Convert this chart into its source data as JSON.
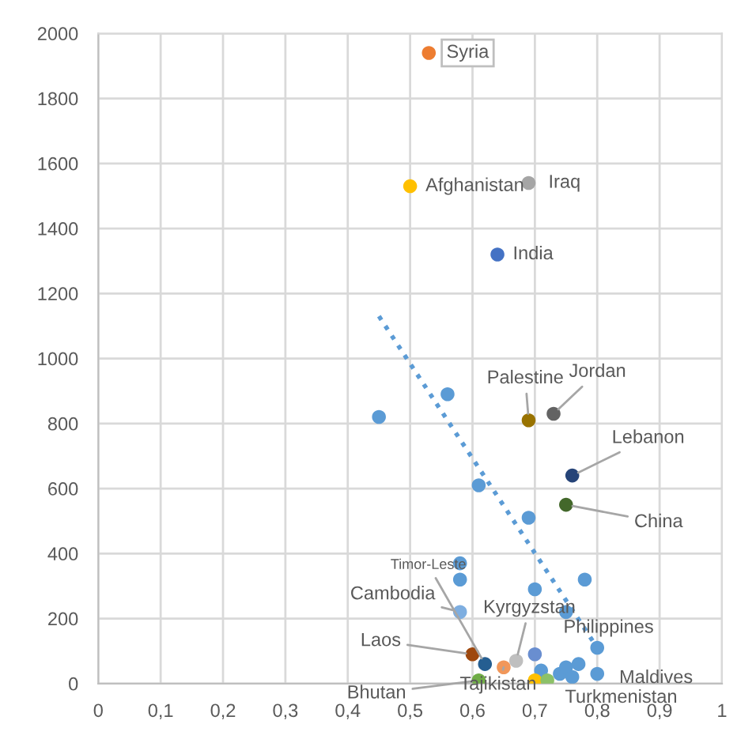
{
  "chart_data": {
    "type": "scatter",
    "xlim": [
      0,
      1
    ],
    "ylim": [
      0,
      2000
    ],
    "xticks": [
      {
        "value": 0,
        "label": "0"
      },
      {
        "value": 0.1,
        "label": "0,1"
      },
      {
        "value": 0.2,
        "label": "0,2"
      },
      {
        "value": 0.3,
        "label": "0,3"
      },
      {
        "value": 0.4,
        "label": "0,4"
      },
      {
        "value": 0.5,
        "label": "0,5"
      },
      {
        "value": 0.6,
        "label": "0,6"
      },
      {
        "value": 0.7,
        "label": "0,7"
      },
      {
        "value": 0.8,
        "label": "0,8"
      },
      {
        "value": 0.9,
        "label": "0,9"
      },
      {
        "value": 1,
        "label": "1"
      }
    ],
    "yticks": [
      0,
      200,
      400,
      600,
      800,
      1000,
      1200,
      1400,
      1600,
      1800,
      2000
    ],
    "grid": true,
    "series": [
      {
        "marker": "circle",
        "x": [
          0.53,
          0.5,
          0.69,
          0.64,
          0.69,
          0.73,
          0.76,
          0.75,
          0.45,
          0.56,
          0.61,
          0.69,
          0.58,
          0.58,
          0.58,
          0.62,
          0.7,
          0.78,
          0.75,
          0.8,
          0.6,
          0.67,
          0.7,
          0.65,
          0.61,
          0.71,
          0.7,
          0.72,
          0.74,
          0.75,
          0.77,
          0.76,
          0.8
        ],
        "values": [
          1940,
          1530,
          1540,
          1320,
          810,
          830,
          640,
          550,
          820,
          890,
          610,
          510,
          370,
          320,
          220,
          60,
          290,
          320,
          220,
          110,
          90,
          70,
          90,
          50,
          10,
          40,
          10,
          10,
          30,
          50,
          60,
          20,
          30
        ],
        "colors": [
          "#ed7d31",
          "#ffc000",
          "#a5a5a5",
          "#4472c4",
          "#997300",
          "#636363",
          "#264478",
          "#43682b",
          "#5b9bd5",
          "#5b9bd5",
          "#5b9bd5",
          "#5b9bd5",
          "#5b9bd5",
          "#5b9bd5",
          "#7eaee0",
          "#255e91",
          "#5b9bd5",
          "#5b9bd5",
          "#5b9bd5",
          "#5b9bd5",
          "#9e480e",
          "#bfbfbf",
          "#698ed0",
          "#f1975a",
          "#70ad47",
          "#5b9bd5",
          "#ffc000",
          "#8cc168",
          "#5b9bd5",
          "#5b9bd5",
          "#5b9bd5",
          "#5b9bd5",
          "#5b9bd5"
        ]
      },
      {
        "type": "line",
        "line_style": "dotted",
        "color": "#5b9bd5",
        "x": [
          0.45,
          0.8
        ],
        "values": [
          1130,
          110
        ]
      }
    ],
    "annotations": [
      {
        "text": "Syria",
        "x": 0.53,
        "y": 1940
      },
      {
        "text": "Afghanistan",
        "x": 0.5,
        "y": 1530
      },
      {
        "text": "Iraq",
        "x": 0.69,
        "y": 1540
      },
      {
        "text": "India",
        "x": 0.64,
        "y": 1320
      },
      {
        "text": "Palestine",
        "x": 0.69,
        "y": 810
      },
      {
        "text": "Jordan",
        "x": 0.73,
        "y": 830
      },
      {
        "text": "Lebanon",
        "x": 0.76,
        "y": 640
      },
      {
        "text": "China",
        "x": 0.75,
        "y": 550
      },
      {
        "text": "Timor-Leste",
        "x": 0.62,
        "y": 60
      },
      {
        "text": "Cambodia",
        "x": 0.58,
        "y": 220
      },
      {
        "text": "Kyrgyzstan",
        "x": 0.67,
        "y": 70
      },
      {
        "text": "Philippines",
        "x": 0.7,
        "y": 90
      },
      {
        "text": "Laos",
        "x": 0.6,
        "y": 90
      },
      {
        "text": "Maldives",
        "x": 0.8,
        "y": 30
      },
      {
        "text": "Bhutan",
        "x": 0.61,
        "y": 10
      },
      {
        "text": "Tajikistan",
        "x": 0.65,
        "y": 50
      },
      {
        "text": "Turkmenistan",
        "x": 0.72,
        "y": 10
      }
    ]
  }
}
